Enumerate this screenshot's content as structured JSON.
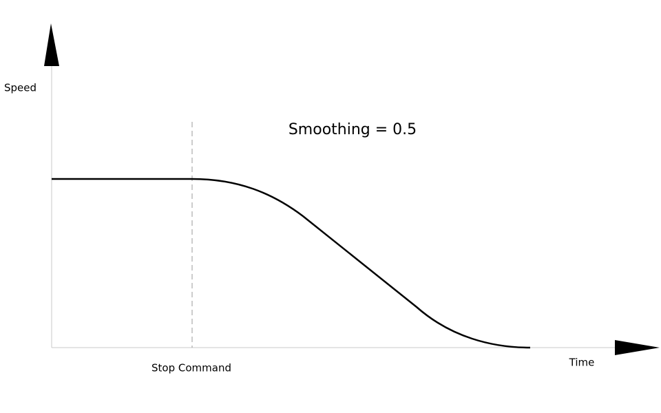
{
  "axes": {
    "y_label": "Speed",
    "x_label": "Time"
  },
  "marker": {
    "label": "Stop Command"
  },
  "annotation": "Smoothing = 0.5"
}
